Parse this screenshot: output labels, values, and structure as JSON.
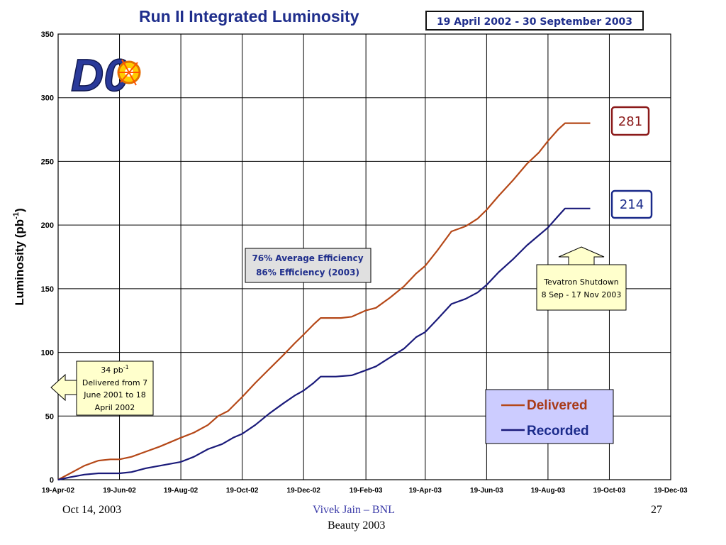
{
  "colors": {
    "delivered": "#b54818",
    "recorded": "#1a1a7a",
    "title": "#1f2e8c",
    "delivered_box": "#8b1a1a",
    "recorded_box": "#1a2a8a",
    "legend_bg": "#ccccff",
    "callout_bg": "#ffffcc",
    "efficiency_bg": "#e0e0e0"
  },
  "footer": {
    "date": "Oct 14, 2003",
    "author": "Vivek Jain – BNL",
    "page": "27",
    "conference": "Beauty 2003"
  },
  "chart_data": {
    "type": "line",
    "title": "Run II Integrated Luminosity",
    "subtitle": "19 April 2002 - 30 September 2003",
    "ylabel_main": "Luminosity (pb",
    "ylabel_sup": "-1",
    "ylabel_close": ")",
    "xlabel": "",
    "ylim": [
      0,
      350
    ],
    "yticks": [
      0,
      50,
      100,
      150,
      200,
      250,
      300,
      350
    ],
    "xlim": [
      "2002-04-19",
      "2003-12-19"
    ],
    "xticks": [
      {
        "date": "2002-04-19",
        "label": "19-Apr-02"
      },
      {
        "date": "2002-06-19",
        "label": "19-Jun-02"
      },
      {
        "date": "2002-08-19",
        "label": "19-Aug-02"
      },
      {
        "date": "2002-10-19",
        "label": "19-Oct-02"
      },
      {
        "date": "2002-12-19",
        "label": "19-Dec-02"
      },
      {
        "date": "2003-02-19",
        "label": "19-Feb-03"
      },
      {
        "date": "2003-04-19",
        "label": "19-Apr-03"
      },
      {
        "date": "2003-06-19",
        "label": "19-Jun-03"
      },
      {
        "date": "2003-08-19",
        "label": "19-Aug-03"
      },
      {
        "date": "2003-10-19",
        "label": "19-Oct-03"
      },
      {
        "date": "2003-12-19",
        "label": "19-Dec-03"
      }
    ],
    "grid": true,
    "legend": "bottom-right",
    "series": [
      {
        "name": "Delivered",
        "points": [
          [
            "2002-04-19",
            0
          ],
          [
            "2002-05-01",
            5
          ],
          [
            "2002-05-15",
            11
          ],
          [
            "2002-05-29",
            15
          ],
          [
            "2002-06-10",
            16
          ],
          [
            "2002-06-19",
            16
          ],
          [
            "2002-07-01",
            18
          ],
          [
            "2002-07-15",
            22
          ],
          [
            "2002-07-29",
            26
          ],
          [
            "2002-08-10",
            30
          ],
          [
            "2002-08-19",
            33
          ],
          [
            "2002-09-01",
            37
          ],
          [
            "2002-09-15",
            43
          ],
          [
            "2002-09-25",
            50
          ],
          [
            "2002-10-05",
            54
          ],
          [
            "2002-10-19",
            65
          ],
          [
            "2002-11-01",
            76
          ],
          [
            "2002-11-15",
            87
          ],
          [
            "2002-11-29",
            98
          ],
          [
            "2002-12-10",
            107
          ],
          [
            "2002-12-19",
            114
          ],
          [
            "2002-12-29",
            122
          ],
          [
            "2003-01-05",
            127
          ],
          [
            "2003-01-15",
            127
          ],
          [
            "2003-01-25",
            127
          ],
          [
            "2003-02-05",
            128
          ],
          [
            "2003-02-19",
            133
          ],
          [
            "2003-03-01",
            135
          ],
          [
            "2003-03-15",
            143
          ],
          [
            "2003-03-29",
            152
          ],
          [
            "2003-04-10",
            162
          ],
          [
            "2003-04-19",
            168
          ],
          [
            "2003-05-01",
            180
          ],
          [
            "2003-05-15",
            195
          ],
          [
            "2003-05-29",
            199
          ],
          [
            "2003-06-10",
            205
          ],
          [
            "2003-06-19",
            212
          ],
          [
            "2003-07-01",
            223
          ],
          [
            "2003-07-15",
            235
          ],
          [
            "2003-07-29",
            248
          ],
          [
            "2003-08-10",
            257
          ],
          [
            "2003-08-19",
            266
          ],
          [
            "2003-08-29",
            275
          ],
          [
            "2003-09-05",
            280
          ],
          [
            "2003-09-30",
            280
          ]
        ]
      },
      {
        "name": "Recorded",
        "points": [
          [
            "2002-04-19",
            0
          ],
          [
            "2002-05-01",
            2
          ],
          [
            "2002-05-15",
            4
          ],
          [
            "2002-05-29",
            5
          ],
          [
            "2002-06-19",
            5
          ],
          [
            "2002-07-01",
            6
          ],
          [
            "2002-07-15",
            9
          ],
          [
            "2002-07-29",
            11
          ],
          [
            "2002-08-19",
            14
          ],
          [
            "2002-09-01",
            18
          ],
          [
            "2002-09-15",
            24
          ],
          [
            "2002-09-29",
            28
          ],
          [
            "2002-10-10",
            33
          ],
          [
            "2002-10-19",
            36
          ],
          [
            "2002-11-01",
            43
          ],
          [
            "2002-11-15",
            52
          ],
          [
            "2002-11-29",
            60
          ],
          [
            "2002-12-10",
            66
          ],
          [
            "2002-12-19",
            70
          ],
          [
            "2002-12-29",
            76
          ],
          [
            "2003-01-05",
            81
          ],
          [
            "2003-01-20",
            81
          ],
          [
            "2003-02-05",
            82
          ],
          [
            "2003-02-19",
            86
          ],
          [
            "2003-03-01",
            89
          ],
          [
            "2003-03-15",
            96
          ],
          [
            "2003-03-29",
            103
          ],
          [
            "2003-04-10",
            112
          ],
          [
            "2003-04-19",
            116
          ],
          [
            "2003-05-01",
            126
          ],
          [
            "2003-05-15",
            138
          ],
          [
            "2003-05-29",
            142
          ],
          [
            "2003-06-10",
            147
          ],
          [
            "2003-06-19",
            153
          ],
          [
            "2003-07-01",
            163
          ],
          [
            "2003-07-15",
            173
          ],
          [
            "2003-07-29",
            184
          ],
          [
            "2003-08-10",
            192
          ],
          [
            "2003-08-19",
            198
          ],
          [
            "2003-08-29",
            207
          ],
          [
            "2003-09-05",
            213
          ],
          [
            "2003-09-30",
            213
          ]
        ]
      }
    ],
    "legend_entries": [
      "Delivered",
      "Recorded"
    ],
    "annotations": {
      "delivered_total": "281",
      "recorded_total": "214",
      "efficiency_line1": "76% Average Efficiency",
      "efficiency_line2": "86% Efficiency (2003)",
      "shutdown_line1": "Tevatron Shutdown",
      "shutdown_line2": "8 Sep - 17 Nov 2003",
      "prior_value": "34 pb",
      "prior_unit_sup": "-1",
      "prior_line2": "Delivered from  7",
      "prior_line3": "June 2001 to 18",
      "prior_line4": "April 2002"
    },
    "logo": {
      "text": "D0",
      "icon": "d0-experiment-logo-icon"
    }
  }
}
